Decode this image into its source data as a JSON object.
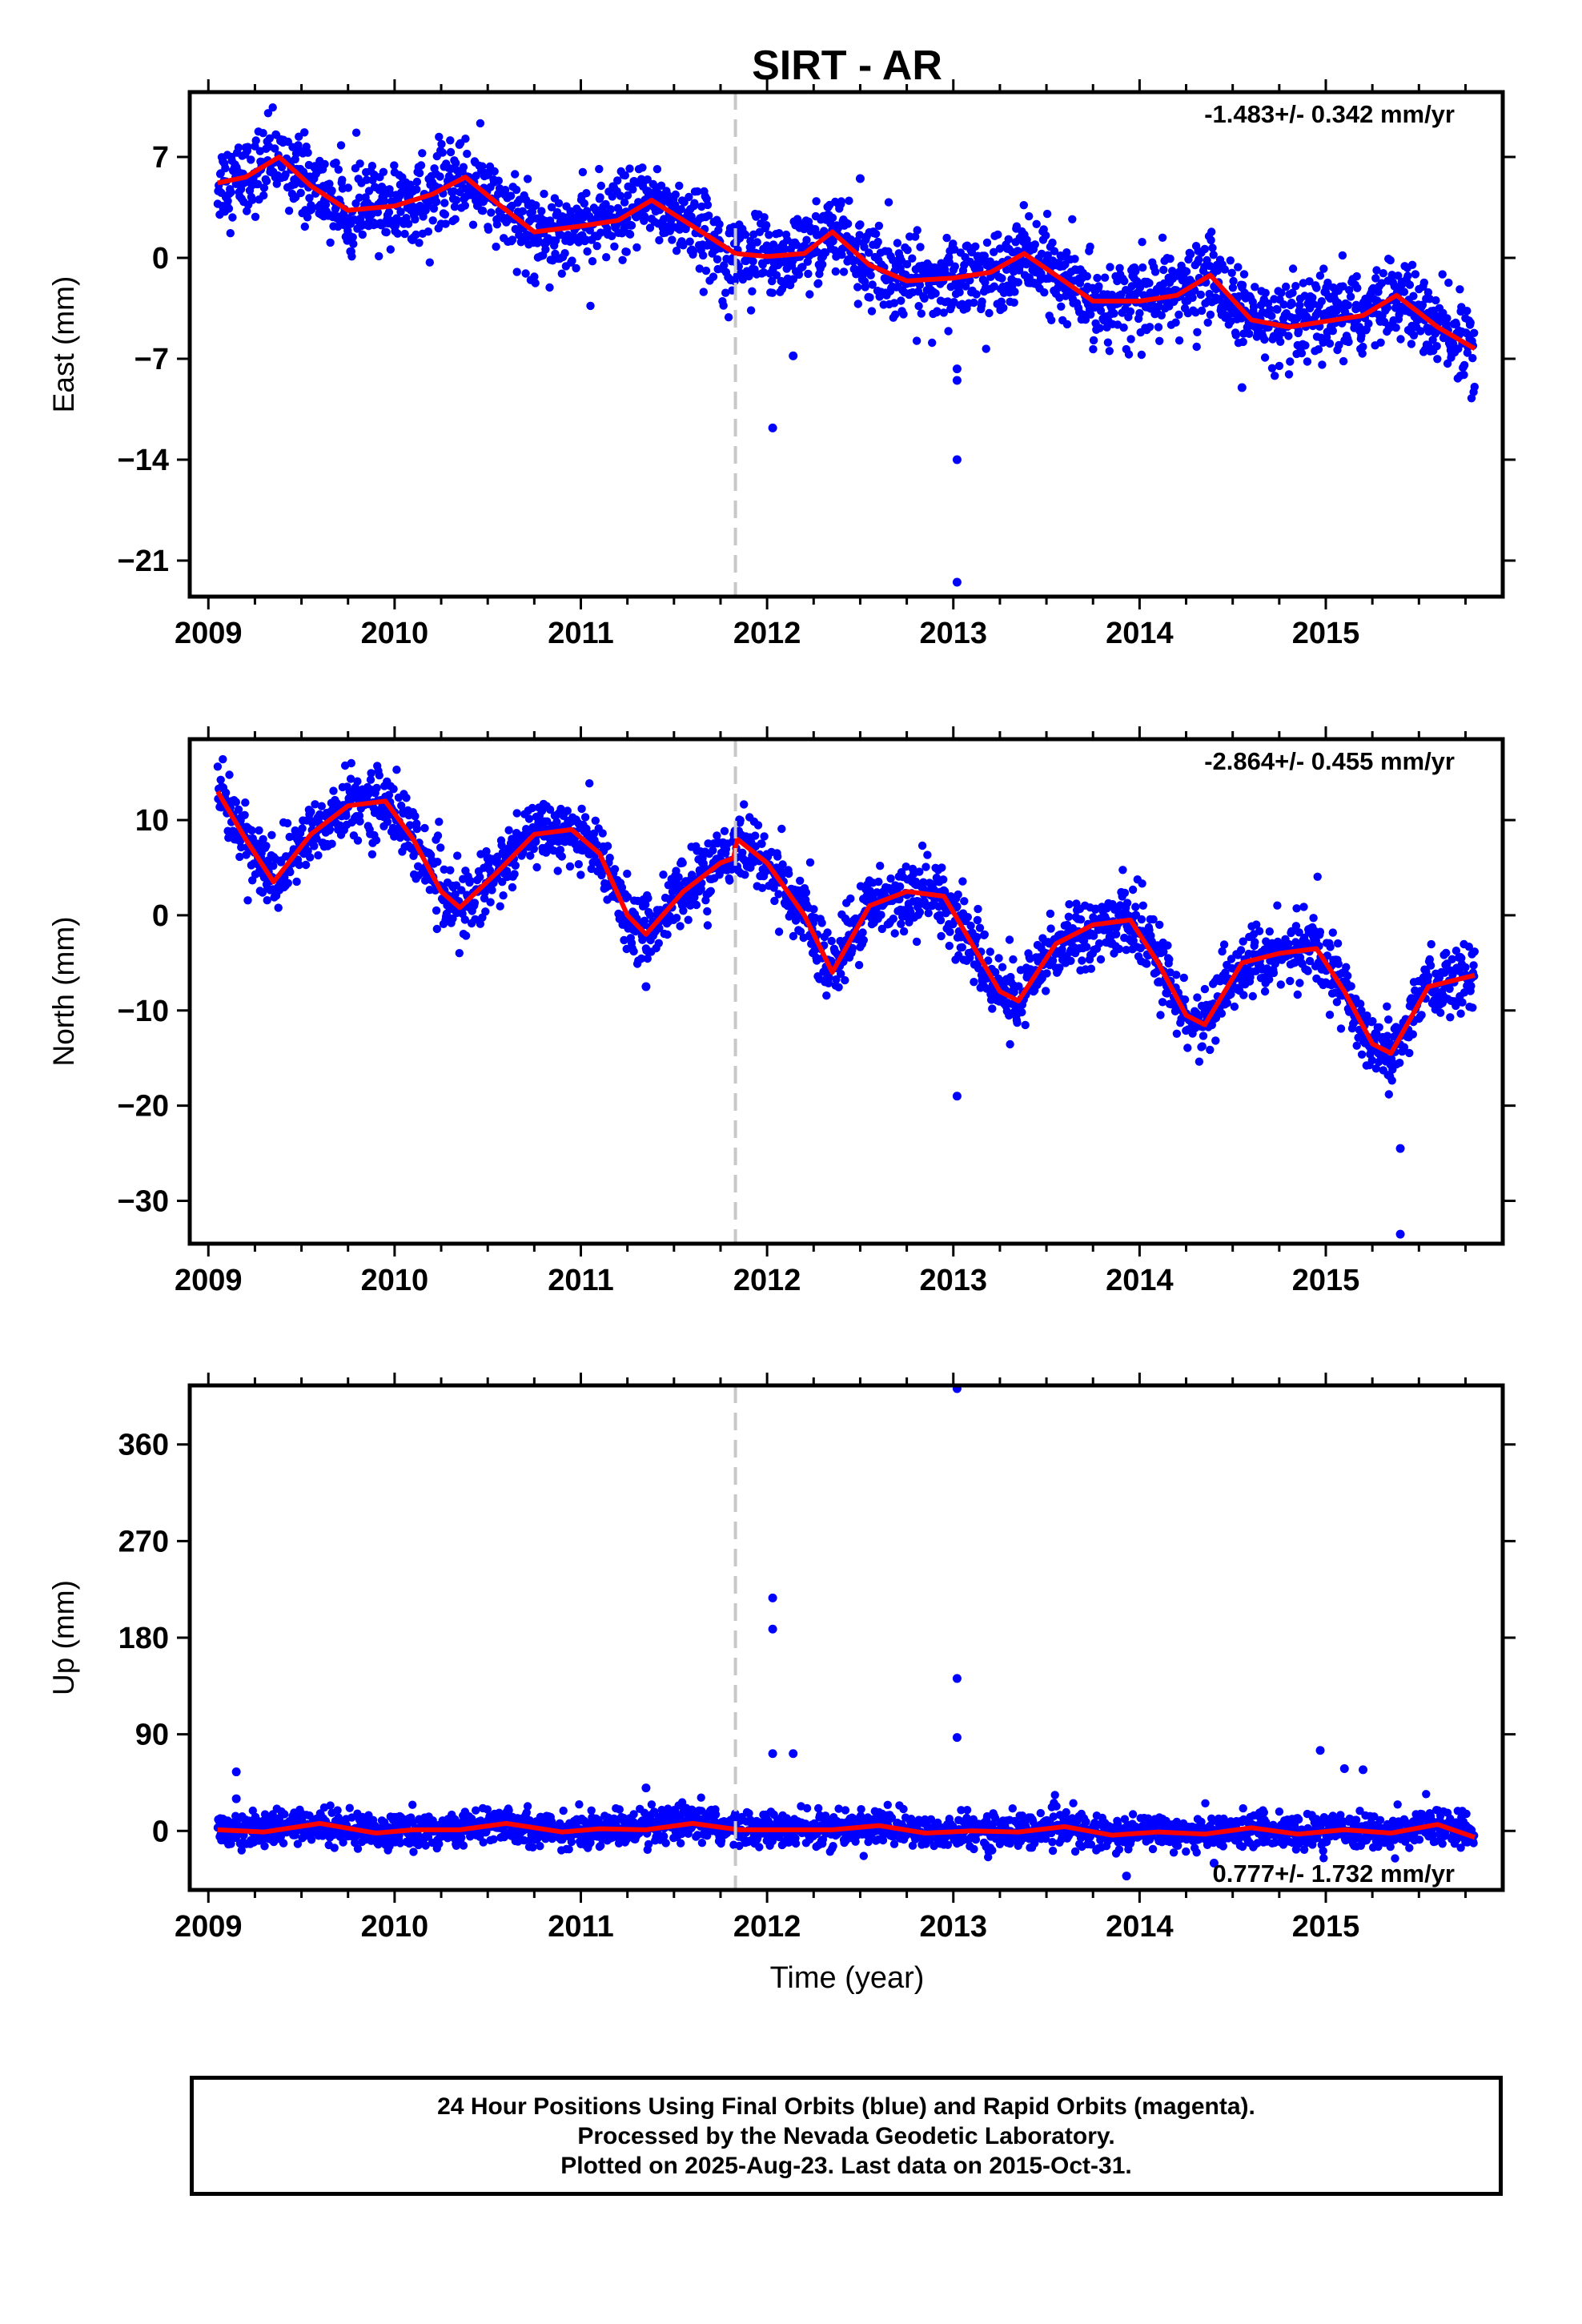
{
  "title": "SIRT - AR",
  "colors": {
    "final_points": "#0000ff",
    "fit_line": "#ff0000",
    "offset_line": "#c8c8c8",
    "frame": "#000000"
  },
  "xlabel": "Time (year)",
  "footer": {
    "line1": "24 Hour Positions Using Final Orbits (blue) and Rapid Orbits (magenta).",
    "line2": "Processed by the Nevada Geodetic Laboratory.",
    "line3": "Plotted on 2025-Aug-23. Last data on 2015-Oct-31."
  },
  "chart_data": [
    {
      "type": "scatter",
      "component": "East",
      "ylabel": "East (mm)",
      "rate_label": "-1.483+/- 0.342 mm/yr",
      "xlim": [
        2008.9,
        2015.95
      ],
      "ylim": [
        -23.5,
        11.5
      ],
      "xticks": [
        "2009",
        "2010",
        "2011",
        "2012",
        "2013",
        "2014",
        "2015"
      ],
      "yticks": [
        "7",
        "0",
        "-7",
        "-14",
        "-21"
      ],
      "offset_epoch": 2011.83,
      "fit_line": {
        "x": [
          2009.05,
          2009.2,
          2009.38,
          2009.55,
          2009.75,
          2010.0,
          2010.2,
          2010.38,
          2010.55,
          2010.75,
          2011.0,
          2011.2,
          2011.38,
          2011.6,
          2011.83,
          2012.0,
          2012.2,
          2012.35,
          2012.55,
          2012.75,
          2013.0,
          2013.2,
          2013.38,
          2013.55,
          2013.75,
          2014.0,
          2014.2,
          2014.38,
          2014.6,
          2014.8,
          2015.0,
          2015.2,
          2015.38,
          2015.6,
          2015.8
        ],
        "y": [
          5.2,
          5.6,
          7.0,
          5.0,
          3.3,
          3.6,
          4.4,
          5.6,
          3.8,
          1.8,
          2.2,
          2.6,
          4.0,
          2.2,
          0.3,
          0.1,
          0.3,
          1.8,
          -0.5,
          -1.6,
          -1.4,
          -1.0,
          0.3,
          -1.2,
          -3.0,
          -3.0,
          -2.6,
          -1.2,
          -4.3,
          -4.8,
          -4.4,
          -4.0,
          -2.6,
          -4.8,
          -6.3
        ]
      },
      "outliers": [
        [
          2012.03,
          -11.8
        ],
        [
          2012.14,
          -6.8
        ],
        [
          2013.02,
          -14.0
        ],
        [
          2013.02,
          -8.5
        ],
        [
          2013.02,
          -7.7
        ],
        [
          2013.02,
          -22.5
        ],
        [
          2012.5,
          5.5
        ],
        [
          2014.55,
          -9.0
        ]
      ],
      "points_note": "about 2400 daily solutions scattered around the fit line (spread about 1.5 mm)"
    },
    {
      "type": "scatter",
      "component": "North",
      "ylabel": "North (mm)",
      "rate_label": "-2.864+/- 0.455 mm/yr",
      "xlim": [
        2008.9,
        2015.95
      ],
      "ylim": [
        -34.5,
        18.5
      ],
      "xticks": [
        "2009",
        "2010",
        "2011",
        "2012",
        "2013",
        "2014",
        "2015"
      ],
      "yticks": [
        "10",
        "0",
        "-10",
        "-20",
        "-30"
      ],
      "offset_epoch": 2011.83,
      "fit_line": {
        "x": [
          2009.05,
          2009.2,
          2009.35,
          2009.55,
          2009.75,
          2009.95,
          2010.1,
          2010.25,
          2010.35,
          2010.55,
          2010.75,
          2010.95,
          2011.1,
          2011.25,
          2011.35,
          2011.55,
          2011.75,
          2011.82,
          2011.84,
          2012.0,
          2012.2,
          2012.35,
          2012.55,
          2012.75,
          2012.95,
          2013.1,
          2013.25,
          2013.35,
          2013.55,
          2013.75,
          2013.95,
          2014.1,
          2014.25,
          2014.35,
          2014.55,
          2014.75,
          2014.95,
          2015.1,
          2015.25,
          2015.35,
          2015.55,
          2015.8
        ],
        "y": [
          13.0,
          8.0,
          3.5,
          8.5,
          11.5,
          12.0,
          8.0,
          2.5,
          0.8,
          4.5,
          8.5,
          9.0,
          6.5,
          0.0,
          -2.0,
          2.5,
          5.5,
          6.0,
          8.0,
          5.5,
          0.0,
          -6.0,
          1.0,
          2.5,
          2.0,
          -3.0,
          -8.0,
          -9.0,
          -3.0,
          -1.0,
          -0.5,
          -5.0,
          -10.5,
          -11.5,
          -5.0,
          -4.0,
          -3.5,
          -8.0,
          -13.5,
          -14.5,
          -7.5,
          -6.3
        ]
      },
      "outliers": [
        [
          2011.35,
          -7.5
        ],
        [
          2013.02,
          -19.0
        ],
        [
          2015.4,
          -24.5
        ],
        [
          2015.4,
          -33.5
        ]
      ],
      "points_note": "about 2400 daily solutions scattered around the fit line (spread about 2 mm)"
    },
    {
      "type": "scatter",
      "component": "Up",
      "ylabel": "Up (mm)",
      "rate_label": "0.777+/- 1.732 mm/yr",
      "xlim": [
        2008.9,
        2015.95
      ],
      "ylim": [
        -55,
        415
      ],
      "xticks": [
        "2009",
        "2010",
        "2011",
        "2012",
        "2013",
        "2014",
        "2015"
      ],
      "yticks": [
        "360",
        "270",
        "180",
        "90",
        "0"
      ],
      "offset_epoch": 2011.83,
      "fit_line": {
        "x": [
          2009.05,
          2009.3,
          2009.6,
          2009.9,
          2010.1,
          2010.35,
          2010.6,
          2010.9,
          2011.1,
          2011.35,
          2011.6,
          2011.85,
          2012.1,
          2012.35,
          2012.6,
          2012.85,
          2013.1,
          2013.35,
          2013.6,
          2013.85,
          2014.1,
          2014.35,
          2014.6,
          2014.85,
          2015.1,
          2015.35,
          2015.6,
          2015.8
        ],
        "y": [
          1,
          -1,
          7,
          -2,
          1,
          1,
          7,
          -1,
          2,
          1,
          7,
          1,
          1,
          1,
          5,
          -2,
          0,
          -1,
          4,
          -4,
          -1,
          -3,
          3,
          -3,
          1,
          -2,
          6,
          -6
        ]
      },
      "outliers": [
        [
          2009.15,
          55
        ],
        [
          2009.15,
          30
        ],
        [
          2012.03,
          217
        ],
        [
          2012.03,
          188
        ],
        [
          2012.03,
          72
        ],
        [
          2012.14,
          72
        ],
        [
          2013.02,
          412
        ],
        [
          2013.02,
          142
        ],
        [
          2013.02,
          87
        ],
        [
          2014.97,
          75
        ],
        [
          2015.1,
          58
        ],
        [
          2015.2,
          57
        ],
        [
          2011.35,
          40
        ],
        [
          2013.93,
          -42
        ],
        [
          2014.4,
          -30
        ]
      ],
      "points_note": "about 2400 daily solutions scattered around the fit line (spread about 8 mm)"
    }
  ]
}
